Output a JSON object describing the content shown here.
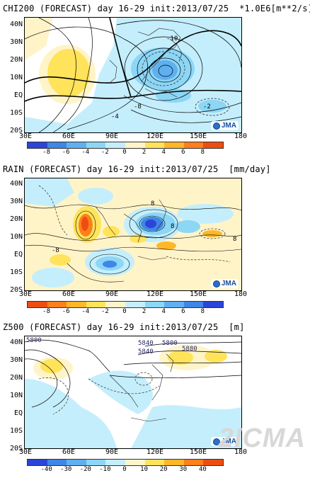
{
  "panels": [
    {
      "title": "CHI200 (FORECAST) day 16-29 init:2013/07/25  *1.0E6[m**2/s]",
      "ylabels": [
        "40N",
        "30N",
        "20N",
        "10N",
        "EQ",
        "10S",
        "20S"
      ],
      "xlabels": [
        "30E",
        "60E",
        "90E",
        "120E",
        "150E",
        "180"
      ],
      "cbar_labels": [
        "-8",
        "-6",
        "-4",
        "-2",
        "0",
        "2",
        "4",
        "6",
        "8"
      ],
      "cbar_colors": [
        "#2b45d8",
        "#3f86e6",
        "#5fb0f0",
        "#8cd6f6",
        "#c4eefc",
        "#fff4c8",
        "#ffe35a",
        "#ffb628",
        "#ff7f1a",
        "#ee4d12"
      ],
      "contour_labels": [
        "-10",
        "-4",
        "-8",
        "-2"
      ],
      "logo": "JMA"
    },
    {
      "title": "RAIN (FORECAST) day 16-29 init:2013/07/25  [mm/day]",
      "ylabels": [
        "40N",
        "30N",
        "20N",
        "10N",
        "EQ",
        "10S",
        "20S"
      ],
      "xlabels": [
        "30E",
        "60E",
        "90E",
        "120E",
        "150E",
        "180"
      ],
      "cbar_labels": [
        "-8",
        "-6",
        "-4",
        "-2",
        "0",
        "2",
        "4",
        "6",
        "8"
      ],
      "cbar_colors": [
        "#ee4d12",
        "#ff7f1a",
        "#ffb628",
        "#ffe35a",
        "#fff4c8",
        "#c4eefc",
        "#8cd6f6",
        "#5fb0f0",
        "#3f86e6",
        "#2b45d8"
      ],
      "contour_labels": [
        "8",
        "8",
        "-8",
        "8"
      ],
      "logo": "JMA"
    },
    {
      "title": "Z500 (FORECAST) day 16-29 init:2013/07/25  [m]",
      "ylabels": [
        "40N",
        "30N",
        "20N",
        "10N",
        "EQ",
        "10S",
        "20S"
      ],
      "xlabels": [
        "30E",
        "60E",
        "90E",
        "120E",
        "150E",
        "180"
      ],
      "cbar_labels": [
        "-40",
        "-30",
        "-20",
        "-10",
        "0",
        "10",
        "20",
        "30",
        "40"
      ],
      "cbar_colors": [
        "#2b45d8",
        "#3f86e6",
        "#5fb0f0",
        "#8cd6f6",
        "#c4eefc",
        "#fff4c8",
        "#ffe35a",
        "#ffb628",
        "#ff7f1a",
        "#ee4d12"
      ],
      "contour_labels": [
        "5800",
        "5840",
        "5800",
        "5840",
        "5880"
      ],
      "logo": "JMA"
    }
  ],
  "watermark": "2ICMA"
}
